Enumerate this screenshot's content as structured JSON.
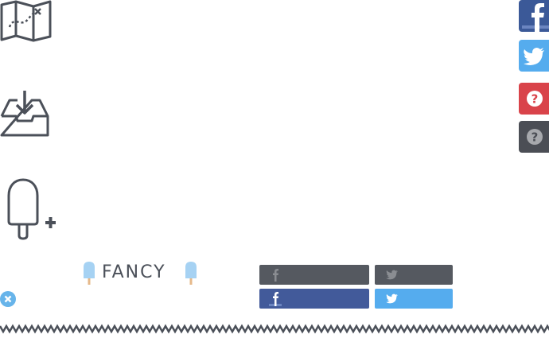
{
  "icons": {
    "map": "map-route-icon",
    "inbox": "inbox-download-icon",
    "popsicle": "popsicle-add-icon",
    "close": "close-icon",
    "facebook": "facebook-icon",
    "twitter": "twitter-icon",
    "help": "question-icon"
  },
  "logo": {
    "text": "FANCY"
  },
  "colors": {
    "icon_stroke": "#4b5059",
    "facebook": "#3b5998",
    "twitter": "#55acee",
    "help_red": "#d9434a",
    "help_dark": "#4b4e55",
    "bar_dark": "#555960",
    "bar_facebook": "#425a9a",
    "bar_twitter": "#55acee",
    "close_blue": "#67b4ea",
    "popsicle_blue": "#a6d2f3"
  }
}
